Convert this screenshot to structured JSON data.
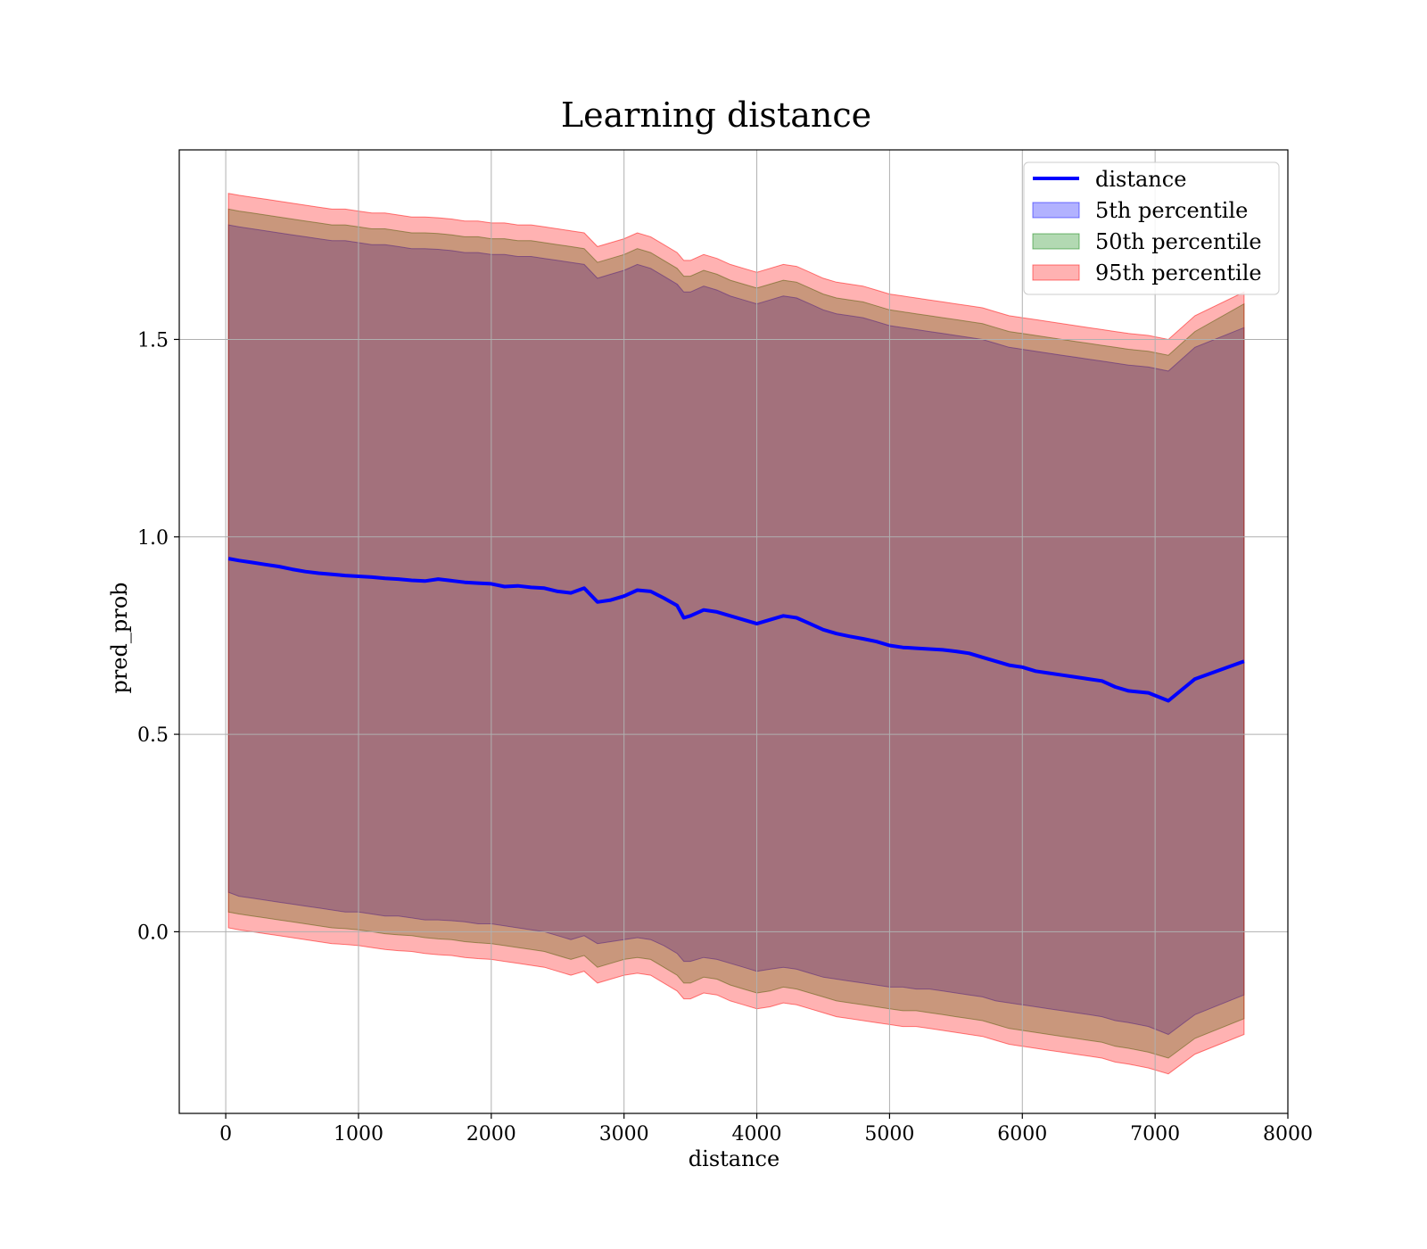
{
  "chart_data": {
    "type": "area",
    "title": "Learning distance",
    "xlabel": "distance",
    "ylabel": "pred_prob",
    "xlim": [
      -350,
      8000
    ],
    "ylim": [
      -0.46,
      1.98
    ],
    "xticks": [
      0,
      1000,
      2000,
      3000,
      4000,
      5000,
      6000,
      7000,
      8000
    ],
    "xtick_labels": [
      "0",
      "1000",
      "2000",
      "3000",
      "4000",
      "5000",
      "6000",
      "7000",
      "8000"
    ],
    "yticks": [
      0.0,
      0.5,
      1.0,
      1.5
    ],
    "ytick_labels": [
      "0.0",
      "0.5",
      "1.0",
      "1.5"
    ],
    "grid": true,
    "legend_position": "top-right",
    "x": [
      20,
      100,
      200,
      300,
      400,
      500,
      600,
      700,
      800,
      900,
      1000,
      1100,
      1200,
      1300,
      1400,
      1500,
      1600,
      1700,
      1800,
      1900,
      2000,
      2100,
      2200,
      2300,
      2400,
      2500,
      2600,
      2700,
      2800,
      2900,
      3000,
      3100,
      3200,
      3300,
      3400,
      3450,
      3500,
      3600,
      3700,
      3800,
      3900,
      4000,
      4100,
      4200,
      4300,
      4400,
      4500,
      4600,
      4700,
      4800,
      4900,
      5000,
      5100,
      5200,
      5300,
      5400,
      5500,
      5600,
      5700,
      5800,
      5900,
      6000,
      6100,
      6200,
      6300,
      6400,
      6500,
      6600,
      6700,
      6800,
      6950,
      7100,
      7300,
      7670
    ],
    "series": [
      {
        "name": "distance",
        "kind": "line",
        "color": "#0000ff",
        "y": [
          0.945,
          0.94,
          0.935,
          0.93,
          0.925,
          0.918,
          0.912,
          0.908,
          0.905,
          0.902,
          0.9,
          0.898,
          0.895,
          0.893,
          0.89,
          0.888,
          0.893,
          0.889,
          0.885,
          0.883,
          0.881,
          0.874,
          0.876,
          0.872,
          0.87,
          0.862,
          0.858,
          0.87,
          0.835,
          0.84,
          0.85,
          0.865,
          0.862,
          0.845,
          0.826,
          0.795,
          0.8,
          0.815,
          0.81,
          0.8,
          0.79,
          0.78,
          0.79,
          0.8,
          0.795,
          0.78,
          0.765,
          0.755,
          0.748,
          0.742,
          0.735,
          0.725,
          0.72,
          0.718,
          0.716,
          0.714,
          0.71,
          0.705,
          0.695,
          0.685,
          0.675,
          0.67,
          0.66,
          0.655,
          0.65,
          0.645,
          0.64,
          0.635,
          0.62,
          0.61,
          0.605,
          0.585,
          0.64,
          0.685
        ]
      },
      {
        "name": "5th percentile",
        "kind": "band",
        "color": "#0000ff",
        "opacity": 0.3,
        "upper": [
          1.79,
          1.785,
          1.78,
          1.775,
          1.77,
          1.765,
          1.76,
          1.755,
          1.75,
          1.75,
          1.745,
          1.74,
          1.74,
          1.735,
          1.73,
          1.73,
          1.728,
          1.725,
          1.72,
          1.72,
          1.715,
          1.715,
          1.71,
          1.71,
          1.705,
          1.7,
          1.695,
          1.69,
          1.655,
          1.665,
          1.675,
          1.69,
          1.68,
          1.66,
          1.64,
          1.62,
          1.62,
          1.635,
          1.625,
          1.61,
          1.6,
          1.59,
          1.6,
          1.61,
          1.605,
          1.59,
          1.575,
          1.565,
          1.56,
          1.555,
          1.545,
          1.535,
          1.53,
          1.525,
          1.52,
          1.515,
          1.51,
          1.505,
          1.5,
          1.49,
          1.48,
          1.475,
          1.47,
          1.465,
          1.46,
          1.455,
          1.45,
          1.445,
          1.44,
          1.435,
          1.43,
          1.42,
          1.48,
          1.53
        ],
        "lower": [
          0.1,
          0.09,
          0.085,
          0.08,
          0.075,
          0.07,
          0.065,
          0.06,
          0.055,
          0.05,
          0.05,
          0.045,
          0.04,
          0.04,
          0.035,
          0.03,
          0.03,
          0.028,
          0.025,
          0.02,
          0.02,
          0.015,
          0.01,
          0.005,
          0.0,
          -0.01,
          -0.02,
          -0.01,
          -0.03,
          -0.025,
          -0.02,
          -0.015,
          -0.02,
          -0.035,
          -0.055,
          -0.075,
          -0.075,
          -0.065,
          -0.07,
          -0.08,
          -0.09,
          -0.1,
          -0.095,
          -0.09,
          -0.095,
          -0.105,
          -0.115,
          -0.12,
          -0.125,
          -0.13,
          -0.135,
          -0.14,
          -0.14,
          -0.145,
          -0.145,
          -0.15,
          -0.155,
          -0.16,
          -0.165,
          -0.175,
          -0.18,
          -0.185,
          -0.19,
          -0.195,
          -0.2,
          -0.205,
          -0.21,
          -0.215,
          -0.225,
          -0.23,
          -0.24,
          -0.26,
          -0.21,
          -0.16
        ]
      },
      {
        "name": "50th percentile",
        "kind": "band",
        "color": "#008000",
        "opacity": 0.3,
        "upper": [
          1.83,
          1.825,
          1.82,
          1.815,
          1.81,
          1.805,
          1.8,
          1.795,
          1.79,
          1.79,
          1.785,
          1.78,
          1.78,
          1.775,
          1.77,
          1.77,
          1.768,
          1.765,
          1.76,
          1.76,
          1.755,
          1.755,
          1.75,
          1.75,
          1.745,
          1.74,
          1.735,
          1.73,
          1.695,
          1.705,
          1.715,
          1.73,
          1.72,
          1.7,
          1.68,
          1.66,
          1.66,
          1.675,
          1.665,
          1.65,
          1.64,
          1.63,
          1.64,
          1.65,
          1.645,
          1.63,
          1.615,
          1.605,
          1.6,
          1.595,
          1.585,
          1.575,
          1.57,
          1.565,
          1.56,
          1.555,
          1.55,
          1.545,
          1.54,
          1.53,
          1.52,
          1.515,
          1.51,
          1.505,
          1.5,
          1.495,
          1.49,
          1.485,
          1.48,
          1.475,
          1.47,
          1.46,
          1.52,
          1.59
        ],
        "lower": [
          0.05,
          0.045,
          0.04,
          0.035,
          0.03,
          0.025,
          0.02,
          0.015,
          0.01,
          0.008,
          0.005,
          0.0,
          -0.005,
          -0.008,
          -0.01,
          -0.015,
          -0.018,
          -0.02,
          -0.025,
          -0.028,
          -0.03,
          -0.035,
          -0.04,
          -0.045,
          -0.05,
          -0.06,
          -0.07,
          -0.06,
          -0.09,
          -0.08,
          -0.07,
          -0.065,
          -0.07,
          -0.09,
          -0.11,
          -0.13,
          -0.13,
          -0.115,
          -0.12,
          -0.135,
          -0.145,
          -0.155,
          -0.15,
          -0.14,
          -0.145,
          -0.155,
          -0.165,
          -0.175,
          -0.18,
          -0.185,
          -0.19,
          -0.195,
          -0.2,
          -0.2,
          -0.205,
          -0.21,
          -0.215,
          -0.22,
          -0.225,
          -0.235,
          -0.245,
          -0.25,
          -0.255,
          -0.26,
          -0.265,
          -0.27,
          -0.275,
          -0.28,
          -0.29,
          -0.295,
          -0.305,
          -0.32,
          -0.27,
          -0.22
        ]
      },
      {
        "name": "95th percentile",
        "kind": "band",
        "color": "#ff0000",
        "opacity": 0.3,
        "upper": [
          1.87,
          1.865,
          1.86,
          1.855,
          1.85,
          1.845,
          1.84,
          1.835,
          1.83,
          1.83,
          1.825,
          1.82,
          1.82,
          1.815,
          1.81,
          1.81,
          1.808,
          1.805,
          1.8,
          1.8,
          1.795,
          1.795,
          1.79,
          1.79,
          1.785,
          1.78,
          1.775,
          1.77,
          1.735,
          1.745,
          1.755,
          1.77,
          1.76,
          1.74,
          1.72,
          1.7,
          1.7,
          1.715,
          1.705,
          1.69,
          1.68,
          1.67,
          1.68,
          1.69,
          1.685,
          1.67,
          1.655,
          1.645,
          1.64,
          1.635,
          1.625,
          1.615,
          1.61,
          1.605,
          1.6,
          1.595,
          1.59,
          1.585,
          1.58,
          1.57,
          1.56,
          1.555,
          1.55,
          1.545,
          1.54,
          1.535,
          1.53,
          1.525,
          1.52,
          1.515,
          1.51,
          1.5,
          1.56,
          1.62
        ],
        "lower": [
          0.01,
          0.005,
          0.0,
          -0.005,
          -0.01,
          -0.015,
          -0.02,
          -0.025,
          -0.03,
          -0.032,
          -0.035,
          -0.04,
          -0.045,
          -0.048,
          -0.05,
          -0.055,
          -0.058,
          -0.06,
          -0.065,
          -0.068,
          -0.07,
          -0.075,
          -0.08,
          -0.085,
          -0.09,
          -0.1,
          -0.11,
          -0.1,
          -0.13,
          -0.12,
          -0.11,
          -0.105,
          -0.11,
          -0.13,
          -0.15,
          -0.17,
          -0.17,
          -0.155,
          -0.16,
          -0.175,
          -0.185,
          -0.195,
          -0.19,
          -0.18,
          -0.185,
          -0.195,
          -0.205,
          -0.215,
          -0.22,
          -0.225,
          -0.23,
          -0.235,
          -0.24,
          -0.24,
          -0.245,
          -0.25,
          -0.255,
          -0.26,
          -0.265,
          -0.275,
          -0.285,
          -0.29,
          -0.295,
          -0.3,
          -0.305,
          -0.31,
          -0.315,
          -0.32,
          -0.33,
          -0.335,
          -0.345,
          -0.36,
          -0.31,
          -0.26
        ]
      }
    ]
  }
}
